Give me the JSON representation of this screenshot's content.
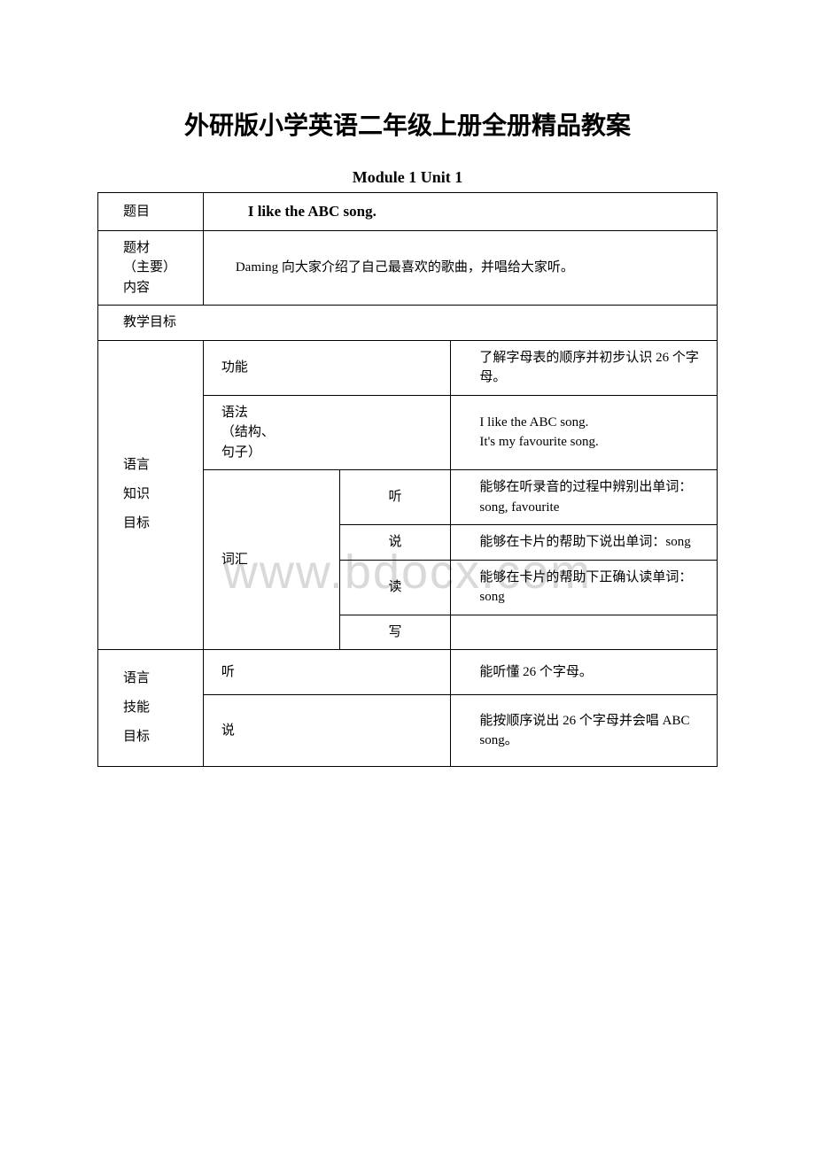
{
  "doc_title": "外研版小学英语二年级上册全册精品教案",
  "module_heading": "Module 1 Unit 1",
  "watermark": "www.bdocx.com",
  "rows": {
    "title_label": "题目",
    "title_value": "I like the ABC song.",
    "content_label_l1": "题材",
    "content_label_l2": "（主要）",
    "content_label_l3": "内容",
    "content_value": "Daming 向大家介绍了自己最喜欢的歌曲，并唱给大家听。",
    "teaching_goal": "教学目标",
    "lang_knowledge_l1": "语言",
    "lang_knowledge_l2": "知识",
    "lang_knowledge_l3": "目标",
    "function_label": "功能",
    "function_desc": "了解字母表的顺序并初步认识 26 个字母。",
    "grammar_label_l1": "语法",
    "grammar_label_l2": "（结构、",
    "grammar_label_l3": "句子）",
    "grammar_desc_l1": "I like the ABC song.",
    "grammar_desc_l2": "It's my favourite song.",
    "vocab_label": "词汇",
    "listen_label": "听",
    "listen_desc": "能够在听录音的过程中辨别出单词：song, favourite",
    "speak_label": "说",
    "speak_desc": "能够在卡片的帮助下说出单词：song",
    "read_label": "读",
    "read_desc": "能够在卡片的帮助下正确认读单词：song",
    "write_label": "写",
    "write_desc": "",
    "lang_skill_l1": "语言",
    "lang_skill_l2": "技能",
    "lang_skill_l3": "目标",
    "skill_listen_label": "听",
    "skill_listen_desc": "能听懂 26 个字母。",
    "skill_speak_label": "说",
    "skill_speak_desc": "能按顺序说出 26 个字母并会唱 ABC song。"
  },
  "colors": {
    "text": "#000000",
    "background": "#ffffff",
    "border": "#000000",
    "watermark": "#d9d9d9"
  },
  "fontsize": {
    "title": 28,
    "subheading": 18,
    "body": 15
  }
}
